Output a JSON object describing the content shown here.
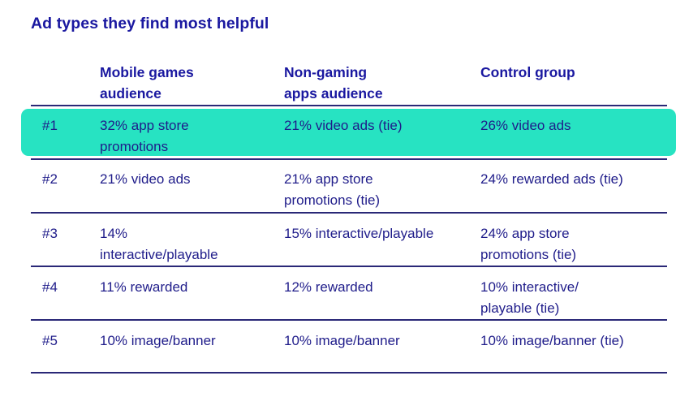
{
  "title": "Ad types they find most helpful",
  "columns": [
    {
      "label_line1": "Mobile games",
      "label_line2": "audience"
    },
    {
      "label_line1": "Non-gaming",
      "label_line2": "apps audience"
    },
    {
      "label_line1": "Control group",
      "label_line2": ""
    }
  ],
  "rows": [
    {
      "rank": "#1",
      "highlight": true,
      "cells": [
        [
          "32% app store",
          "promotions"
        ],
        [
          "21% video ads (tie)",
          ""
        ],
        [
          "26% video ads",
          ""
        ]
      ]
    },
    {
      "rank": "#2",
      "highlight": false,
      "cells": [
        [
          "21% video ads",
          ""
        ],
        [
          "21% app store",
          "promotions (tie)"
        ],
        [
          "24% rewarded ads (tie)",
          ""
        ]
      ]
    },
    {
      "rank": "#3",
      "highlight": false,
      "cells": [
        [
          "14%",
          "interactive/playable"
        ],
        [
          "15% interactive/playable",
          ""
        ],
        [
          "24% app store",
          "promotions (tie)"
        ]
      ]
    },
    {
      "rank": "#4",
      "highlight": false,
      "cells": [
        [
          "11% rewarded",
          ""
        ],
        [
          "12% rewarded",
          ""
        ],
        [
          "10% interactive/",
          "playable (tie)"
        ]
      ]
    },
    {
      "rank": "#5",
      "highlight": false,
      "cells": [
        [
          "10% image/banner",
          ""
        ],
        [
          "10% image/banner",
          ""
        ],
        [
          "10% image/banner (tie)",
          ""
        ]
      ]
    }
  ],
  "colors": {
    "title": "#1a18a0",
    "text": "#1f1c8a",
    "highlight": "#27e3c2",
    "rule": "#2a2877"
  }
}
